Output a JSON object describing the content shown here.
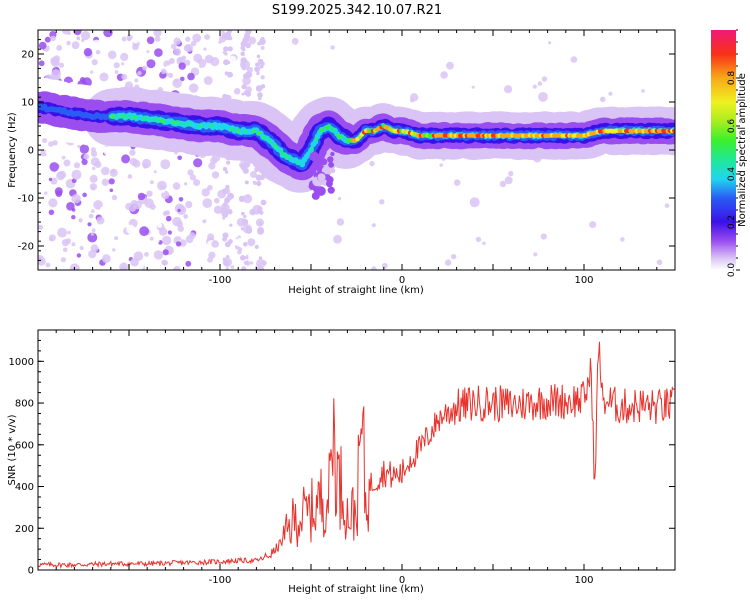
{
  "title": "S199.2025.342.10.07.R21",
  "chart_data": [
    {
      "type": "heatmap",
      "name": "spectrogram",
      "xlabel": "Height of straight line (km)",
      "ylabel": "Frequency (Hz)",
      "xlim": [
        -200,
        150
      ],
      "ylim": [
        -25,
        25
      ],
      "xticks": [
        -100,
        0,
        100
      ],
      "yticks": [
        -20,
        -10,
        0,
        10,
        20
      ],
      "ridge": {
        "x": [
          -200,
          -170,
          -150,
          -130,
          -110,
          -100,
          -90,
          -80,
          -70,
          -65,
          -60,
          -55,
          -50,
          -45,
          -40,
          -35,
          -30,
          -25,
          -20,
          -15,
          -10,
          -5,
          0,
          10,
          20,
          30,
          40,
          50,
          60,
          70,
          80,
          90,
          100,
          110,
          120,
          130,
          140,
          150
        ],
        "y": [
          9,
          7,
          7,
          6,
          5,
          5,
          4,
          4,
          1,
          -1,
          -2,
          -3,
          0,
          4,
          5,
          3,
          2,
          2,
          4,
          4,
          5,
          4,
          4,
          3,
          3,
          3,
          3,
          3,
          3,
          3,
          3,
          3,
          3,
          4,
          4,
          4,
          4,
          4
        ]
      },
      "colorbar": {
        "label": "Normalized spectral amplitude",
        "ticks": [
          "0.0",
          "0.2",
          "0.4",
          "0.6",
          "0.8"
        ],
        "range": [
          0,
          1
        ]
      }
    },
    {
      "type": "line",
      "name": "snr",
      "xlabel": "Height of straight line (km)",
      "ylabel": "SNR (10 * v/v)",
      "xlim": [
        -200,
        150
      ],
      "ylim": [
        0,
        1150
      ],
      "xticks": [
        -100,
        0,
        100
      ],
      "yticks": [
        0,
        200,
        400,
        600,
        800,
        1000
      ],
      "color": "#e8322c",
      "series": [
        {
          "name": "SNR",
          "x": [
            -200,
            -180,
            -160,
            -140,
            -120,
            -100,
            -90,
            -80,
            -75,
            -70,
            -65,
            -60,
            -55,
            -50,
            -45,
            -40,
            -38,
            -35,
            -32,
            -30,
            -25,
            -22,
            -20,
            -18,
            -15,
            -10,
            -5,
            0,
            5,
            10,
            15,
            20,
            25,
            30,
            40,
            50,
            60,
            70,
            80,
            90,
            100,
            104,
            106,
            108,
            110,
            120,
            130,
            140,
            150
          ],
          "y": [
            25,
            25,
            30,
            30,
            35,
            40,
            45,
            45,
            60,
            90,
            150,
            230,
            260,
            280,
            330,
            370,
            700,
            420,
            380,
            260,
            280,
            700,
            320,
            400,
            430,
            470,
            450,
            460,
            540,
            580,
            650,
            720,
            760,
            780,
            800,
            800,
            790,
            800,
            810,
            810,
            820,
            950,
            380,
            1100,
            820,
            780,
            790,
            780,
            790
          ]
        }
      ]
    }
  ]
}
